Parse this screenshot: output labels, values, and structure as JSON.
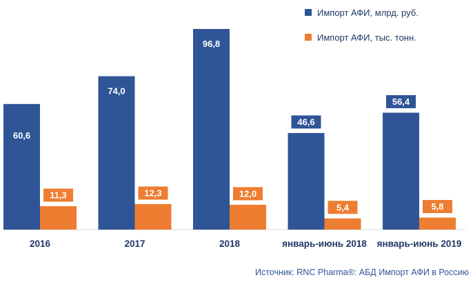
{
  "chart_data": {
    "type": "bar",
    "categories": [
      "2016",
      "2017",
      "2018",
      "январь-июнь 2018",
      "январь-июнь 2019"
    ],
    "series": [
      {
        "name": "Импорт АФИ, млрд. руб.",
        "values": [
          60.6,
          74.0,
          96.8,
          46.6,
          56.4
        ],
        "labels": [
          "60,6",
          "74,0",
          "96,8",
          "46,6",
          "56,4"
        ],
        "color": "#2f5597"
      },
      {
        "name": "Импорт АФИ, тыс. тонн.",
        "values": [
          11.3,
          12.3,
          12.0,
          5.4,
          5.8
        ],
        "labels": [
          "11,3",
          "12,3",
          "12,0",
          "5,4",
          "5,8"
        ],
        "color": "#ed7d31"
      }
    ],
    "ylim": [
      0,
      100
    ],
    "legend": "top-right",
    "grid": false,
    "source": "Источник: RNC Pharma®: АБД Импорт АФИ в Россию"
  }
}
